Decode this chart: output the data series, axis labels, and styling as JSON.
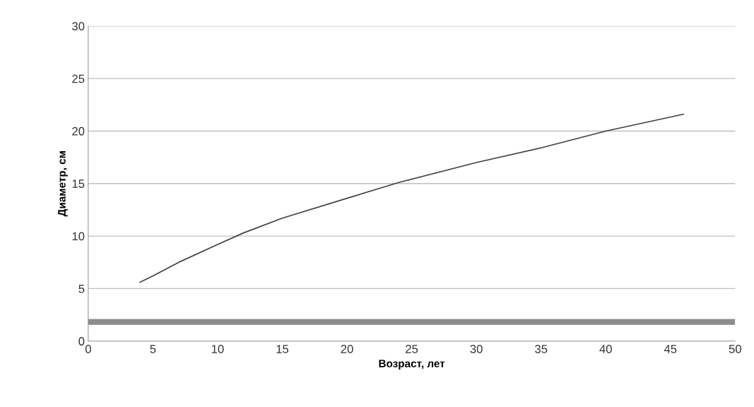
{
  "chart_data": {
    "type": "line",
    "xlabel": "Возраст, лет",
    "ylabel": "Диаметр, см",
    "x": [
      4,
      5,
      7,
      10,
      12,
      15,
      20,
      24,
      30,
      35,
      40,
      46
    ],
    "values": [
      5.6,
      6.2,
      7.5,
      9.2,
      10.3,
      11.7,
      13.6,
      15.1,
      17.0,
      18.4,
      20.0,
      21.6
    ],
    "color": "#404040",
    "xlim": [
      0,
      50
    ],
    "xticks": [
      0,
      5,
      10,
      15,
      20,
      25,
      30,
      35,
      40,
      45,
      50
    ],
    "ylim": [
      0,
      30
    ],
    "yticks": [
      0,
      5,
      10,
      15,
      20,
      25,
      30
    ],
    "grid": "y",
    "marker": "none",
    "line_style": "solid",
    "bands": [
      {
        "axis": "y",
        "from": 1.55,
        "to": 2.1,
        "color": "#8c8c8c"
      }
    ]
  }
}
